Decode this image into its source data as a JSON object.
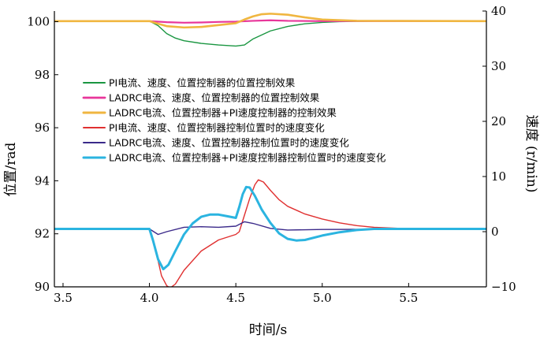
{
  "chart_data": {
    "type": "line",
    "xlabel": "时间/s",
    "ylabel": "位置/rad",
    "y2label": "速度 (r/min)",
    "xlim": [
      3.45,
      5.95
    ],
    "ylim": [
      90,
      100.4
    ],
    "y2lim": [
      -10,
      40
    ],
    "xticks": [
      3.5,
      4.0,
      4.5,
      5.0,
      5.5
    ],
    "xtick_labels": [
      "3.5",
      "4.0",
      "4.5",
      "5.0",
      "5.5"
    ],
    "yticks": [
      90,
      92,
      94,
      96,
      98,
      100
    ],
    "ytick_labels": [
      "90",
      "92",
      "94",
      "96",
      "98",
      "100"
    ],
    "y2ticks": [
      -10,
      0,
      10,
      20,
      30,
      40
    ],
    "y2tick_labels": [
      "−10",
      "0",
      "10",
      "20",
      "30",
      "40"
    ],
    "grid": false,
    "legend_position": "center-left",
    "series": [
      {
        "name": "PI电流、速度、位置控制器的位置控制效果",
        "axis": "left",
        "color": "#1a9641",
        "width": 1.4,
        "points": [
          [
            3.45,
            100.02
          ],
          [
            4.0,
            100.02
          ],
          [
            4.05,
            99.85
          ],
          [
            4.1,
            99.55
          ],
          [
            4.15,
            99.38
          ],
          [
            4.2,
            99.28
          ],
          [
            4.3,
            99.18
          ],
          [
            4.4,
            99.12
          ],
          [
            4.5,
            99.08
          ],
          [
            4.55,
            99.12
          ],
          [
            4.6,
            99.35
          ],
          [
            4.7,
            99.65
          ],
          [
            4.8,
            99.82
          ],
          [
            4.9,
            99.92
          ],
          [
            5.0,
            99.97
          ],
          [
            5.1,
            100.0
          ],
          [
            5.3,
            100.02
          ],
          [
            5.95,
            100.02
          ]
        ]
      },
      {
        "name": "LADRC电流、速度、位置控制器的位置控制效果",
        "axis": "left",
        "color": "#e8369a",
        "width": 2.2,
        "points": [
          [
            3.45,
            100.02
          ],
          [
            4.0,
            100.02
          ],
          [
            4.1,
            99.98
          ],
          [
            4.2,
            99.96
          ],
          [
            4.3,
            99.97
          ],
          [
            4.4,
            99.99
          ],
          [
            4.5,
            100.0
          ],
          [
            4.6,
            100.03
          ],
          [
            4.7,
            100.05
          ],
          [
            4.8,
            100.03
          ],
          [
            5.0,
            100.02
          ],
          [
            5.95,
            100.02
          ]
        ]
      },
      {
        "name": "LADRC电流、位置控制器+PI速度控制器的控制效果",
        "axis": "left",
        "color": "#f0b640",
        "width": 2.6,
        "points": [
          [
            3.45,
            100.02
          ],
          [
            4.0,
            100.02
          ],
          [
            4.05,
            99.92
          ],
          [
            4.1,
            99.83
          ],
          [
            4.2,
            99.78
          ],
          [
            4.3,
            99.8
          ],
          [
            4.4,
            99.87
          ],
          [
            4.5,
            99.94
          ],
          [
            4.55,
            100.08
          ],
          [
            4.6,
            100.2
          ],
          [
            4.65,
            100.28
          ],
          [
            4.7,
            100.3
          ],
          [
            4.8,
            100.26
          ],
          [
            4.9,
            100.16
          ],
          [
            5.0,
            100.08
          ],
          [
            5.2,
            100.03
          ],
          [
            5.95,
            100.02
          ]
        ]
      },
      {
        "name": "PI电流、速度、位置控制器控制位置时的速度变化",
        "axis": "right",
        "color": "#e03030",
        "width": 1.4,
        "points": [
          [
            3.45,
            0.5
          ],
          [
            4.0,
            0.5
          ],
          [
            4.03,
            -2.5
          ],
          [
            4.07,
            -8
          ],
          [
            4.1,
            -9.8
          ],
          [
            4.12,
            -10.2
          ],
          [
            4.15,
            -9.5
          ],
          [
            4.2,
            -7
          ],
          [
            4.3,
            -3.5
          ],
          [
            4.4,
            -1.5
          ],
          [
            4.5,
            -0.5
          ],
          [
            4.52,
            0
          ],
          [
            4.55,
            3
          ],
          [
            4.58,
            6
          ],
          [
            4.61,
            8.5
          ],
          [
            4.63,
            9.4
          ],
          [
            4.66,
            9
          ],
          [
            4.7,
            7.5
          ],
          [
            4.75,
            5.8
          ],
          [
            4.8,
            4.6
          ],
          [
            4.9,
            3.2
          ],
          [
            5.0,
            2.3
          ],
          [
            5.1,
            1.6
          ],
          [
            5.2,
            1.1
          ],
          [
            5.3,
            0.8
          ],
          [
            5.45,
            0.6
          ],
          [
            5.95,
            0.5
          ]
        ]
      },
      {
        "name": "LADRC电流、速度、位置控制器控制位置时的速度变化",
        "axis": "right",
        "color": "#3b2a8a",
        "width": 1.4,
        "points": [
          [
            3.45,
            0.5
          ],
          [
            4.0,
            0.5
          ],
          [
            4.05,
            -0.5
          ],
          [
            4.1,
            0
          ],
          [
            4.2,
            0.8
          ],
          [
            4.3,
            0.9
          ],
          [
            4.4,
            0.8
          ],
          [
            4.5,
            1
          ],
          [
            4.55,
            1.8
          ],
          [
            4.6,
            1.5
          ],
          [
            4.7,
            0.6
          ],
          [
            4.8,
            0.3
          ],
          [
            5.0,
            0.4
          ],
          [
            5.95,
            0.5
          ]
        ]
      },
      {
        "name": "LADRC电流、位置控制器+PI速度控制器控制位置时的速度变化",
        "axis": "right",
        "color": "#2bb4e0",
        "width": 3,
        "points": [
          [
            3.45,
            0.5
          ],
          [
            4.0,
            0.5
          ],
          [
            4.02,
            -1.5
          ],
          [
            4.05,
            -5
          ],
          [
            4.08,
            -6.8
          ],
          [
            4.11,
            -6
          ],
          [
            4.15,
            -3.5
          ],
          [
            4.2,
            -0.5
          ],
          [
            4.25,
            1.5
          ],
          [
            4.3,
            2.7
          ],
          [
            4.35,
            3.1
          ],
          [
            4.4,
            3.1
          ],
          [
            4.45,
            2.8
          ],
          [
            4.5,
            2.5
          ],
          [
            4.52,
            4.5
          ],
          [
            4.54,
            6.8
          ],
          [
            4.56,
            8.1
          ],
          [
            4.58,
            8
          ],
          [
            4.61,
            6.5
          ],
          [
            4.65,
            4
          ],
          [
            4.7,
            1.6
          ],
          [
            4.75,
            -0.3
          ],
          [
            4.8,
            -1.3
          ],
          [
            4.85,
            -1.6
          ],
          [
            4.9,
            -1.5
          ],
          [
            5.0,
            -0.7
          ],
          [
            5.1,
            -0.1
          ],
          [
            5.2,
            0.3
          ],
          [
            5.3,
            0.5
          ],
          [
            5.95,
            0.5
          ]
        ]
      }
    ]
  }
}
